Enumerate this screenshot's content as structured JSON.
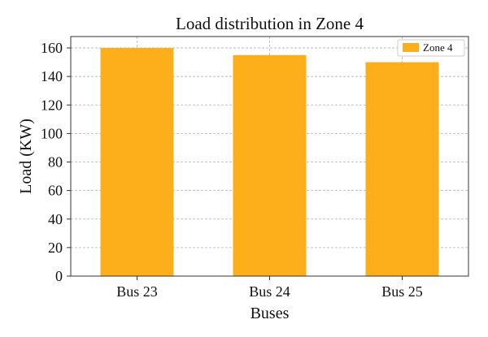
{
  "chart_data": {
    "type": "bar",
    "title": "Load distribution in Zone 4",
    "xlabel": "Buses",
    "ylabel": "Load (KW)",
    "categories": [
      "Bus 23",
      "Bus 24",
      "Bus 25"
    ],
    "series": [
      {
        "name": "Zone 4",
        "values": [
          160,
          155,
          150
        ],
        "color": "#FDAE1B"
      }
    ],
    "ylim": [
      0,
      168
    ],
    "yticks": [
      0,
      20,
      40,
      60,
      80,
      100,
      120,
      140,
      160
    ],
    "grid": true,
    "legend_position": "top-right"
  }
}
